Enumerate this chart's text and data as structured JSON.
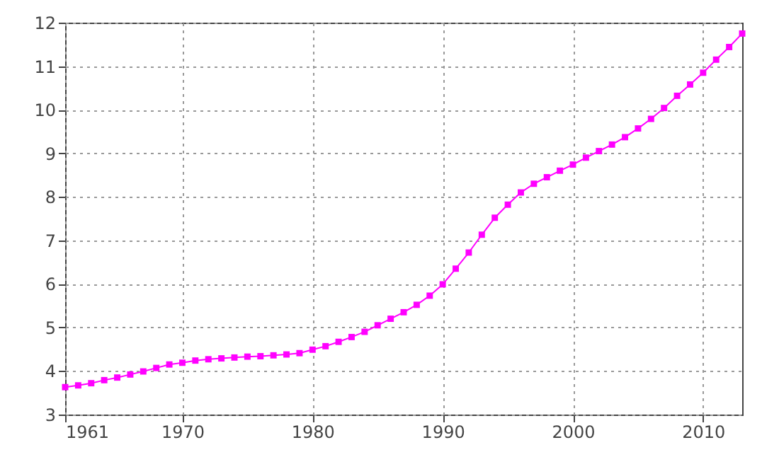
{
  "chart_data": {
    "type": "line",
    "x": [
      1961,
      1962,
      1963,
      1964,
      1965,
      1966,
      1967,
      1968,
      1969,
      1970,
      1971,
      1972,
      1973,
      1974,
      1975,
      1976,
      1977,
      1978,
      1979,
      1980,
      1981,
      1982,
      1983,
      1984,
      1985,
      1986,
      1987,
      1988,
      1989,
      1990,
      1991,
      1992,
      1993,
      1994,
      1995,
      1996,
      1997,
      1998,
      1999,
      2000,
      2001,
      2002,
      2003,
      2004,
      2005,
      2006,
      2007,
      2008,
      2009,
      2010,
      2011,
      2012,
      2013
    ],
    "series": [
      {
        "color": "#ff00ff",
        "values": [
          3.63,
          3.67,
          3.72,
          3.79,
          3.85,
          3.92,
          3.99,
          4.07,
          4.15,
          4.19,
          4.24,
          4.27,
          4.29,
          4.31,
          4.33,
          4.34,
          4.36,
          4.38,
          4.41,
          4.49,
          4.57,
          4.67,
          4.78,
          4.9,
          5.05,
          5.2,
          5.35,
          5.52,
          5.73,
          5.99,
          6.35,
          6.72,
          7.13,
          7.52,
          7.82,
          8.1,
          8.3,
          8.45,
          8.6,
          8.74,
          8.9,
          9.05,
          9.2,
          9.37,
          9.57,
          9.79,
          10.04,
          10.32,
          10.58,
          10.85,
          11.15,
          11.44,
          11.75
        ]
      }
    ],
    "xlim": [
      1961,
      2013
    ],
    "xticks": [
      1961,
      1970,
      1980,
      1990,
      2000,
      2010
    ],
    "ylim": [
      3,
      12
    ],
    "yticks": [
      3,
      4,
      5,
      6,
      7,
      8,
      9,
      10,
      11,
      12
    ],
    "grid": true,
    "marker": "square",
    "line_style": "solid"
  }
}
